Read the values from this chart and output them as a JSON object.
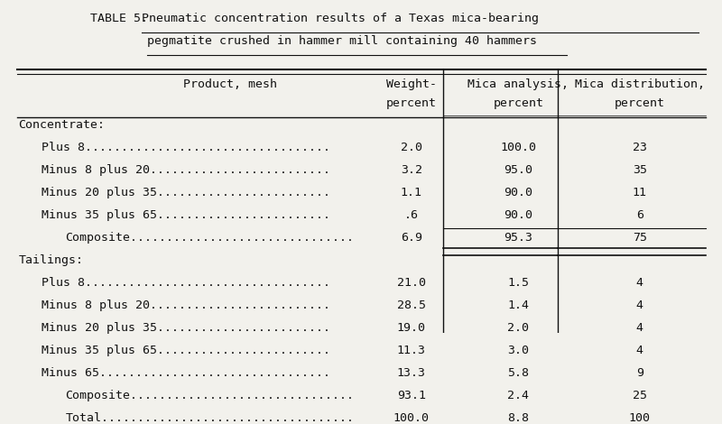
{
  "title_prefix": "TABLE 5. - ",
  "title_line1": "Pneumatic concentration results of a Texas mica-bearing",
  "title_line2": "pegmatite crushed in hammer mill containing 40 hammers",
  "col_headers": [
    [
      "Product, mesh",
      ""
    ],
    [
      "Weight-",
      "percent"
    ],
    [
      "Mica analysis,",
      "percent"
    ],
    [
      "Mica distribution,",
      "percent"
    ]
  ],
  "rows": [
    {
      "label": "Concentrate:",
      "indent": 0,
      "section_header": true,
      "weight": "",
      "mica_analysis": "",
      "mica_dist": ""
    },
    {
      "label": "Plus 8",
      "dots": true,
      "indent": 1,
      "section_header": false,
      "weight": "2.0",
      "mica_analysis": "100.0",
      "mica_dist": "23"
    },
    {
      "label": "Minus 8 plus 20",
      "dots": true,
      "indent": 1,
      "section_header": false,
      "weight": "3.2",
      "mica_analysis": "95.0",
      "mica_dist": "35"
    },
    {
      "label": "Minus 20 plus 35",
      "dots": true,
      "indent": 1,
      "section_header": false,
      "weight": "1.1",
      "mica_analysis": "90.0",
      "mica_dist": "11"
    },
    {
      "label": "Minus 35 plus 65",
      "dots": true,
      "indent": 1,
      "section_header": false,
      "weight": ".6",
      "mica_analysis": "90.0",
      "mica_dist": "6"
    },
    {
      "label": "Composite",
      "dots": true,
      "indent": 2,
      "section_header": false,
      "weight": "6.9",
      "mica_analysis": "95.3",
      "mica_dist": "75",
      "single_line_above_col1": true,
      "double_line_below_col1": true,
      "single_line_above_col3": true,
      "double_line_below_col3": true
    },
    {
      "label": "Tailings:",
      "indent": 0,
      "section_header": true,
      "weight": "",
      "mica_analysis": "",
      "mica_dist": ""
    },
    {
      "label": "Plus 8",
      "dots": true,
      "indent": 1,
      "section_header": false,
      "weight": "21.0",
      "mica_analysis": "1.5",
      "mica_dist": "4"
    },
    {
      "label": "Minus 8 plus 20",
      "dots": true,
      "indent": 1,
      "section_header": false,
      "weight": "28.5",
      "mica_analysis": "1.4",
      "mica_dist": "4"
    },
    {
      "label": "Minus 20 plus 35",
      "dots": true,
      "indent": 1,
      "section_header": false,
      "weight": "19.0",
      "mica_analysis": "2.0",
      "mica_dist": "4"
    },
    {
      "label": "Minus 35 plus 65",
      "dots": true,
      "indent": 1,
      "section_header": false,
      "weight": "11.3",
      "mica_analysis": "3.0",
      "mica_dist": "4"
    },
    {
      "label": "Minus 65",
      "dots": true,
      "indent": 1,
      "section_header": false,
      "weight": "13.3",
      "mica_analysis": "5.8",
      "mica_dist": "9"
    },
    {
      "label": "Composite",
      "dots": true,
      "indent": 2,
      "section_header": false,
      "weight": "93.1",
      "mica_analysis": "2.4",
      "mica_dist": "25",
      "single_line_above_col1": true,
      "single_line_above_col3": true
    },
    {
      "label": "Total",
      "dots": true,
      "indent": 2,
      "section_header": false,
      "weight": "100.0",
      "mica_analysis": "8.8",
      "mica_dist": "100",
      "double_line_below_col1": true,
      "double_line_below_col3": true
    }
  ],
  "bg_color": "#f2f1ec",
  "text_color": "#111111",
  "font_size": 9.5
}
